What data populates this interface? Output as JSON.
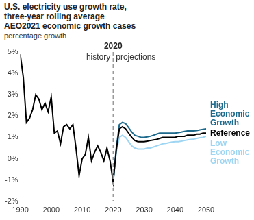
{
  "chart_data": {
    "type": "line",
    "title": "U.S. electricity use growth rate, three-year rolling average",
    "subtitle": "AEO2021 economic growth cases",
    "y_label": "percentage growth",
    "x": [
      1990,
      1991,
      1992,
      1993,
      1994,
      1995,
      1996,
      1997,
      1998,
      1999,
      2000,
      2001,
      2002,
      2003,
      2004,
      2005,
      2006,
      2007,
      2008,
      2009,
      2010,
      2011,
      2012,
      2013,
      2014,
      2015,
      2016,
      2017,
      2018,
      2019,
      2020,
      2021,
      2022,
      2023,
      2024,
      2025,
      2026,
      2027,
      2028,
      2029,
      2030,
      2031,
      2032,
      2033,
      2034,
      2035,
      2036,
      2037,
      2038,
      2039,
      2040,
      2041,
      2042,
      2043,
      2044,
      2045,
      2046,
      2047,
      2048,
      2049,
      2050
    ],
    "series": [
      {
        "name": "High Economic Growth",
        "color": "#1d6a8c",
        "values": [
          null,
          null,
          null,
          null,
          null,
          null,
          null,
          null,
          null,
          null,
          null,
          null,
          null,
          null,
          null,
          null,
          null,
          null,
          null,
          null,
          null,
          null,
          null,
          null,
          null,
          null,
          null,
          null,
          null,
          null,
          -1.1,
          0.5,
          1.6,
          1.7,
          1.65,
          1.45,
          1.25,
          1.1,
          1.05,
          1.0,
          1.0,
          1.02,
          1.05,
          1.1,
          1.15,
          1.2,
          1.2,
          1.2,
          1.2,
          1.2,
          1.2,
          1.22,
          1.25,
          1.28,
          1.3,
          1.3,
          1.3,
          1.32,
          1.35,
          1.38,
          1.4
        ]
      },
      {
        "name": "Reference",
        "color": "#000000",
        "values": [
          4.9,
          3.8,
          1.7,
          1.9,
          2.3,
          3.0,
          2.8,
          2.3,
          2.6,
          2.2,
          2.9,
          1.2,
          1.3,
          0.7,
          1.5,
          1.6,
          1.4,
          1.6,
          0.5,
          -0.8,
          0.0,
          0.2,
          1.0,
          -0.1,
          0.3,
          0.6,
          0.3,
          -0.1,
          0.5,
          -0.1,
          -1.1,
          0.4,
          1.4,
          1.5,
          1.4,
          1.2,
          1.0,
          0.85,
          0.8,
          0.8,
          0.8,
          0.82,
          0.85,
          0.88,
          0.9,
          0.95,
          1.0,
          1.0,
          1.0,
          1.0,
          1.0,
          1.05,
          1.05,
          1.05,
          1.1,
          1.1,
          1.1,
          1.15,
          1.15,
          1.2,
          1.2
        ]
      },
      {
        "name": "Low Economic Growth",
        "color": "#9dd5f2",
        "values": [
          null,
          null,
          null,
          null,
          null,
          null,
          null,
          null,
          null,
          null,
          null,
          null,
          null,
          null,
          null,
          null,
          null,
          null,
          null,
          null,
          null,
          null,
          null,
          null,
          null,
          null,
          null,
          null,
          null,
          null,
          -1.1,
          0.3,
          1.0,
          1.1,
          1.0,
          0.8,
          0.6,
          0.5,
          0.45,
          0.45,
          0.45,
          0.5,
          0.5,
          0.55,
          0.6,
          0.65,
          0.7,
          0.72,
          0.75,
          0.78,
          0.8,
          0.8,
          0.82,
          0.85,
          0.88,
          0.9,
          0.92,
          0.95,
          0.98,
          1.0,
          1.05
        ]
      }
    ],
    "xlim": [
      1990,
      2050
    ],
    "xticks": [
      1990,
      2000,
      2010,
      2020,
      2030,
      2040,
      2050
    ],
    "ylim": [
      -2,
      5
    ],
    "yticks": [
      {
        "value": -2,
        "label": "-2%"
      },
      {
        "value": -1,
        "label": "-1%"
      },
      {
        "value": 0,
        "label": "0%"
      },
      {
        "value": 1,
        "label": "1%"
      },
      {
        "value": 2,
        "label": "2%"
      },
      {
        "value": 3,
        "label": "3%"
      },
      {
        "value": 4,
        "label": "4%"
      },
      {
        "value": 5,
        "label": "5%"
      }
    ],
    "grid": false,
    "annotations": [
      {
        "text": "2020",
        "x": 2020
      },
      {
        "text": "history"
      },
      {
        "text": "projections"
      }
    ]
  }
}
